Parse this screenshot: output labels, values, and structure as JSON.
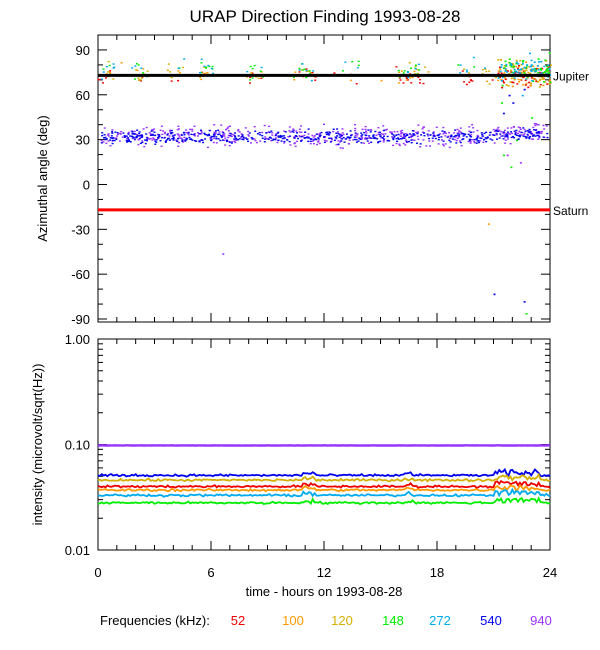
{
  "chart_data": {
    "title": "URAP Direction Finding  1993-08-28",
    "xlabel": "time - hours on 1993-08-28",
    "x_ticks": [
      0,
      6,
      12,
      18,
      24
    ],
    "xlim": [
      0,
      24
    ],
    "grid": false,
    "panels": [
      {
        "type": "scatter",
        "ylabel": "Azimuthal angle (deg)",
        "ylim": [
          -92,
          100
        ],
        "y_ticks": [
          90,
          60,
          30,
          0,
          -30,
          -60,
          -90
        ],
        "reference_lines": [
          {
            "label": "Jupiter",
            "y": 73,
            "color": "#000000"
          },
          {
            "label": "Saturn",
            "y": -17,
            "color": "#ff0000"
          }
        ],
        "series": [
          {
            "freq": "940",
            "color": "#9933ff",
            "mean": 33,
            "spread": 6,
            "burst_points": [
              [
                21.7,
                20
              ],
              [
                22.4,
                15
              ],
              [
                23.6,
                40
              ],
              [
                6.6,
                -46
              ]
            ]
          },
          {
            "freq": "540",
            "color": "#0000ee",
            "mean": 32,
            "spread": 4,
            "burst_points": [
              [
                21.5,
                48
              ],
              [
                21.8,
                60
              ],
              [
                22.0,
                55
              ],
              [
                22.6,
                64
              ],
              [
                21.0,
                -73
              ],
              [
                22.6,
                -78
              ]
            ]
          },
          {
            "freq": "52",
            "color": "#ee0000",
            "mean": 72,
            "spread": 5,
            "burst_points": [
              [
                4.2,
                70
              ],
              [
                12.5,
                75
              ],
              [
                22.3,
                80
              ]
            ]
          },
          {
            "freq": "100",
            "color": "#ff9900",
            "mean": 74,
            "spread": 6,
            "burst_points": [
              [
                20.7,
                -26
              ],
              [
                1.2,
                82
              ],
              [
                15.0,
                70
              ]
            ]
          },
          {
            "freq": "120",
            "color": "#d4b000",
            "mean": 75,
            "spread": 6,
            "burst_points": [
              [
                16.5,
                82
              ],
              [
                22.5,
                78
              ]
            ]
          },
          {
            "freq": "148",
            "color": "#00ee00",
            "mean": 77,
            "spread": 7,
            "burst_points": [
              [
                21.5,
                20
              ],
              [
                21.9,
                12
              ],
              [
                22.2,
                30
              ],
              [
                23.0,
                45
              ],
              [
                22.7,
                -86
              ],
              [
                21.4,
                55
              ]
            ]
          },
          {
            "freq": "272",
            "color": "#00aaee",
            "mean": 78,
            "spread": 6,
            "burst_points": [
              [
                22.5,
                60
              ],
              [
                23.0,
                70
              ],
              [
                11.3,
                70
              ]
            ]
          }
        ]
      },
      {
        "type": "line",
        "ylabel": "intensity (microvolt/sqrt(Hz))",
        "yscale": "log",
        "ylim": [
          0.01,
          1.0
        ],
        "y_ticks": [
          1.0,
          0.1,
          0.01
        ],
        "y_tick_labels": [
          "1.00",
          "0.10",
          "0.01"
        ],
        "series": [
          {
            "freq": "940",
            "color": "#9933ff",
            "level": 0.098
          },
          {
            "freq": "540",
            "color": "#0000ee",
            "level": 0.051
          },
          {
            "freq": "120",
            "color": "#d4b000",
            "level": 0.046
          },
          {
            "freq": "52",
            "color": "#ee0000",
            "level": 0.04
          },
          {
            "freq": "100",
            "color": "#ff9900",
            "level": 0.037
          },
          {
            "freq": "272",
            "color": "#00aaee",
            "level": 0.033
          },
          {
            "freq": "148",
            "color": "#00ee00",
            "level": 0.028
          }
        ]
      }
    ],
    "legend": {
      "label": "Frequencies (kHz):",
      "placement": "bottom",
      "entries": [
        {
          "text": "52",
          "color": "#ee0000"
        },
        {
          "text": "100",
          "color": "#ff9900"
        },
        {
          "text": "120",
          "color": "#d4b000"
        },
        {
          "text": "148",
          "color": "#00ee00"
        },
        {
          "text": "272",
          "color": "#00aaee"
        },
        {
          "text": "540",
          "color": "#0000ee"
        },
        {
          "text": "940",
          "color": "#9933ff"
        }
      ]
    }
  }
}
